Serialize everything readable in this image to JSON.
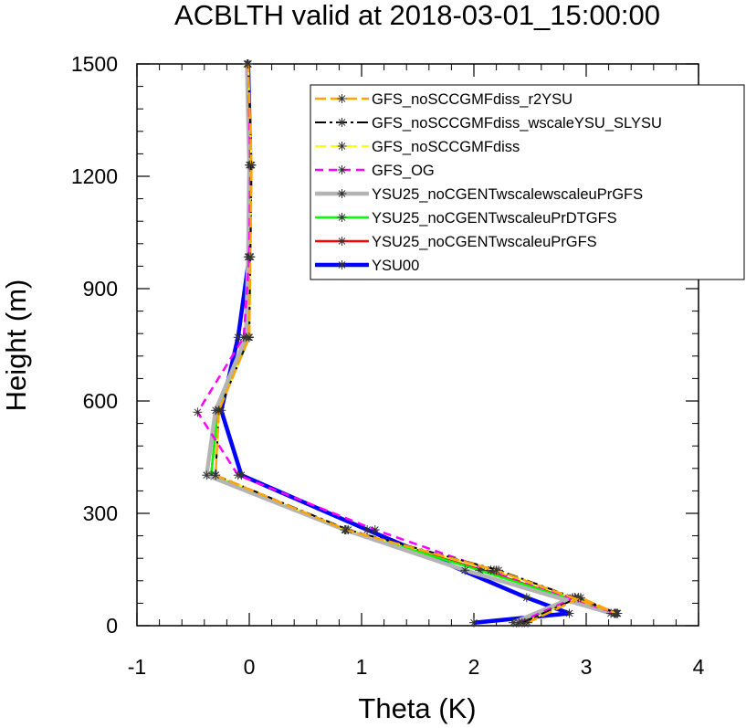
{
  "chart_data": {
    "type": "line",
    "title": "ACBLTH valid at 2018-03-01_15:00:00",
    "xlabel": "Theta (K)",
    "ylabel": "Height (m)",
    "xlim": [
      -1,
      4
    ],
    "ylim": [
      0,
      1500
    ],
    "xticks": [
      "-1",
      "0",
      "1",
      "2",
      "3",
      "4"
    ],
    "yticks": [
      "0",
      "300",
      "600",
      "900",
      "1200",
      "1500"
    ],
    "grid": false,
    "legend_position": "top-right",
    "series": [
      {
        "name": "GFS_noSCCGMFdiss_r2YSU",
        "color": "#ffa500",
        "dash": "long-dash",
        "marker": "asterisk",
        "x": [
          2.48,
          2.95,
          3.27,
          2.2,
          0.86,
          -0.3,
          -0.27,
          0.0,
          0.01,
          0.02,
          -0.01
        ],
        "y": [
          8,
          75,
          33,
          148,
          256,
          402,
          575,
          770,
          985,
          1230,
          1500
        ]
      },
      {
        "name": "GFS_noSCCGMFdiss_wscaleYSU_SLYSU",
        "color": "#000000",
        "dash": "dash-dot",
        "marker": "asterisk",
        "x": [
          2.43,
          2.93,
          3.28,
          2.22,
          0.88,
          -0.3,
          -0.27,
          0.0,
          0.01,
          0.02,
          -0.01
        ],
        "y": [
          8,
          75,
          33,
          148,
          256,
          402,
          575,
          770,
          985,
          1230,
          1500
        ]
      },
      {
        "name": "GFS_noSCCGMFdiss",
        "color": "#ffff00",
        "dash": "long-dash",
        "marker": "asterisk",
        "x": [
          2.45,
          2.93,
          3.27,
          2.18,
          0.86,
          -0.3,
          -0.27,
          0.0,
          0.01,
          0.02,
          -0.01
        ],
        "y": [
          8,
          75,
          33,
          148,
          256,
          402,
          575,
          770,
          985,
          1230,
          1500
        ]
      },
      {
        "name": "GFS_OG",
        "color": "#ff00ff",
        "dash": "dash",
        "marker": "asterisk",
        "x": [
          2.4,
          2.9,
          3.26,
          2.15,
          1.12,
          -0.1,
          -0.46,
          -0.05,
          0.0,
          0.01,
          -0.01
        ],
        "y": [
          8,
          75,
          33,
          148,
          256,
          402,
          570,
          770,
          985,
          1230,
          1500
        ]
      },
      {
        "name": "YSU25_noCGENTwscalewscaleuPrGFS",
        "color": "#b4b4b4",
        "dash": "solid",
        "marker": "asterisk",
        "x": [
          2.35,
          2.88,
          3.22,
          1.92,
          0.85,
          -0.38,
          -0.3,
          -0.03,
          -0.01,
          0.0,
          -0.02
        ],
        "y": [
          8,
          75,
          33,
          148,
          256,
          402,
          575,
          770,
          985,
          1230,
          1500
        ]
      },
      {
        "name": "YSU25_noCGENTwscaleuPrDTGFS",
        "color": "#00ff00",
        "dash": "solid",
        "marker": "asterisk",
        "x": [
          2.38,
          2.9,
          3.25,
          2.05,
          0.86,
          -0.34,
          -0.28,
          -0.01,
          0.0,
          0.01,
          -0.01
        ],
        "y": [
          8,
          75,
          33,
          148,
          256,
          402,
          575,
          770,
          985,
          1230,
          1500
        ]
      },
      {
        "name": "YSU25_noCGENTwscaleuPrGFS",
        "color": "#ff0000",
        "dash": "solid",
        "marker": "asterisk",
        "x": [
          2.38,
          2.9,
          3.25,
          2.08,
          0.86,
          -0.34,
          -0.28,
          -0.01,
          0.0,
          0.01,
          -0.01
        ],
        "y": [
          8,
          75,
          33,
          148,
          256,
          402,
          575,
          770,
          985,
          1230,
          1500
        ]
      },
      {
        "name": "YSU00",
        "color": "#0000ff",
        "dash": "solid",
        "marker": "asterisk",
        "x": [
          2.0,
          2.85,
          2.47,
          1.05,
          -0.07,
          -0.25,
          -0.1,
          0.0,
          0.01,
          -0.01
        ],
        "y": [
          8,
          33,
          75,
          256,
          402,
          575,
          770,
          985,
          1230,
          1500
        ]
      }
    ]
  }
}
